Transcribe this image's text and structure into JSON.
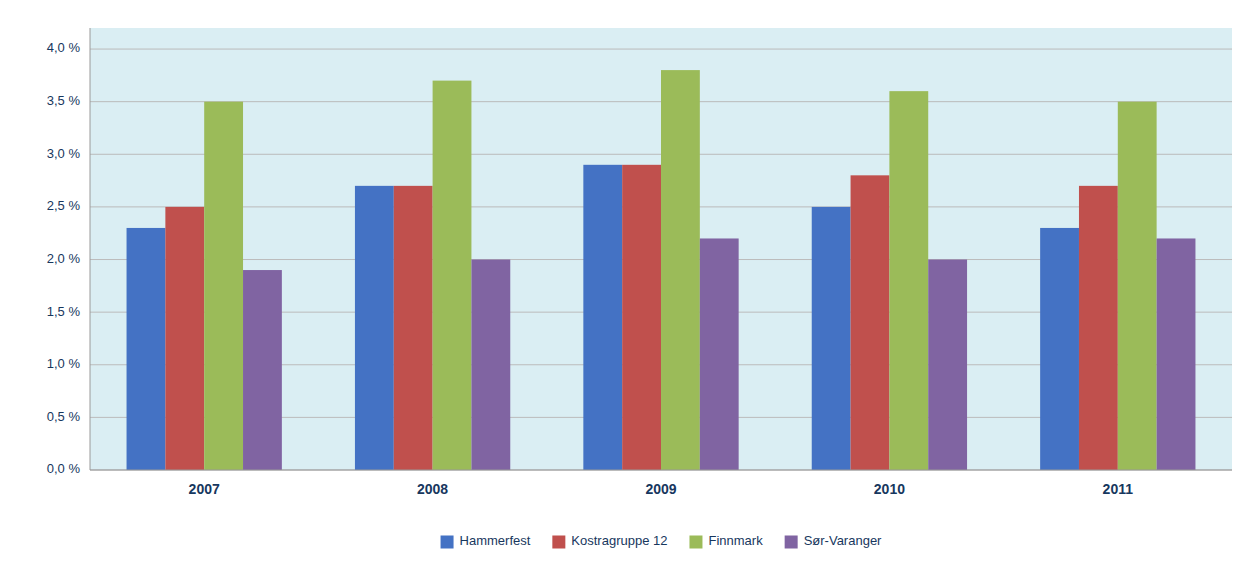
{
  "chart_data": {
    "type": "bar",
    "categories": [
      "2007",
      "2008",
      "2009",
      "2010",
      "2011"
    ],
    "series": [
      {
        "name": "Hammerfest",
        "color": "#4472C4",
        "values": [
          0.023,
          0.027,
          0.029,
          0.025,
          0.023
        ]
      },
      {
        "name": "Kostragruppe 12",
        "color": "#C0504D",
        "values": [
          0.025,
          0.027,
          0.029,
          0.028,
          0.027
        ]
      },
      {
        "name": "Finnmark",
        "color": "#9BBB59",
        "values": [
          0.035,
          0.037,
          0.038,
          0.036,
          0.035
        ]
      },
      {
        "name": "Sør-Varanger",
        "color": "#8064A2",
        "values": [
          0.019,
          0.02,
          0.022,
          0.02,
          0.022
        ]
      }
    ],
    "ylim": [
      0.0,
      0.042
    ],
    "yticks": [
      {
        "value": 0.0,
        "label": "0,0 %"
      },
      {
        "value": 0.005,
        "label": "0,5 %"
      },
      {
        "value": 0.01,
        "label": "1,0 %"
      },
      {
        "value": 0.015,
        "label": "1,5 %"
      },
      {
        "value": 0.02,
        "label": "2,0 %"
      },
      {
        "value": 0.025,
        "label": "2,5 %"
      },
      {
        "value": 0.03,
        "label": "3,0 %"
      },
      {
        "value": 0.035,
        "label": "3,5 %"
      },
      {
        "value": 0.04,
        "label": "4,0 %"
      }
    ],
    "grid": true,
    "legend": "bottom"
  }
}
